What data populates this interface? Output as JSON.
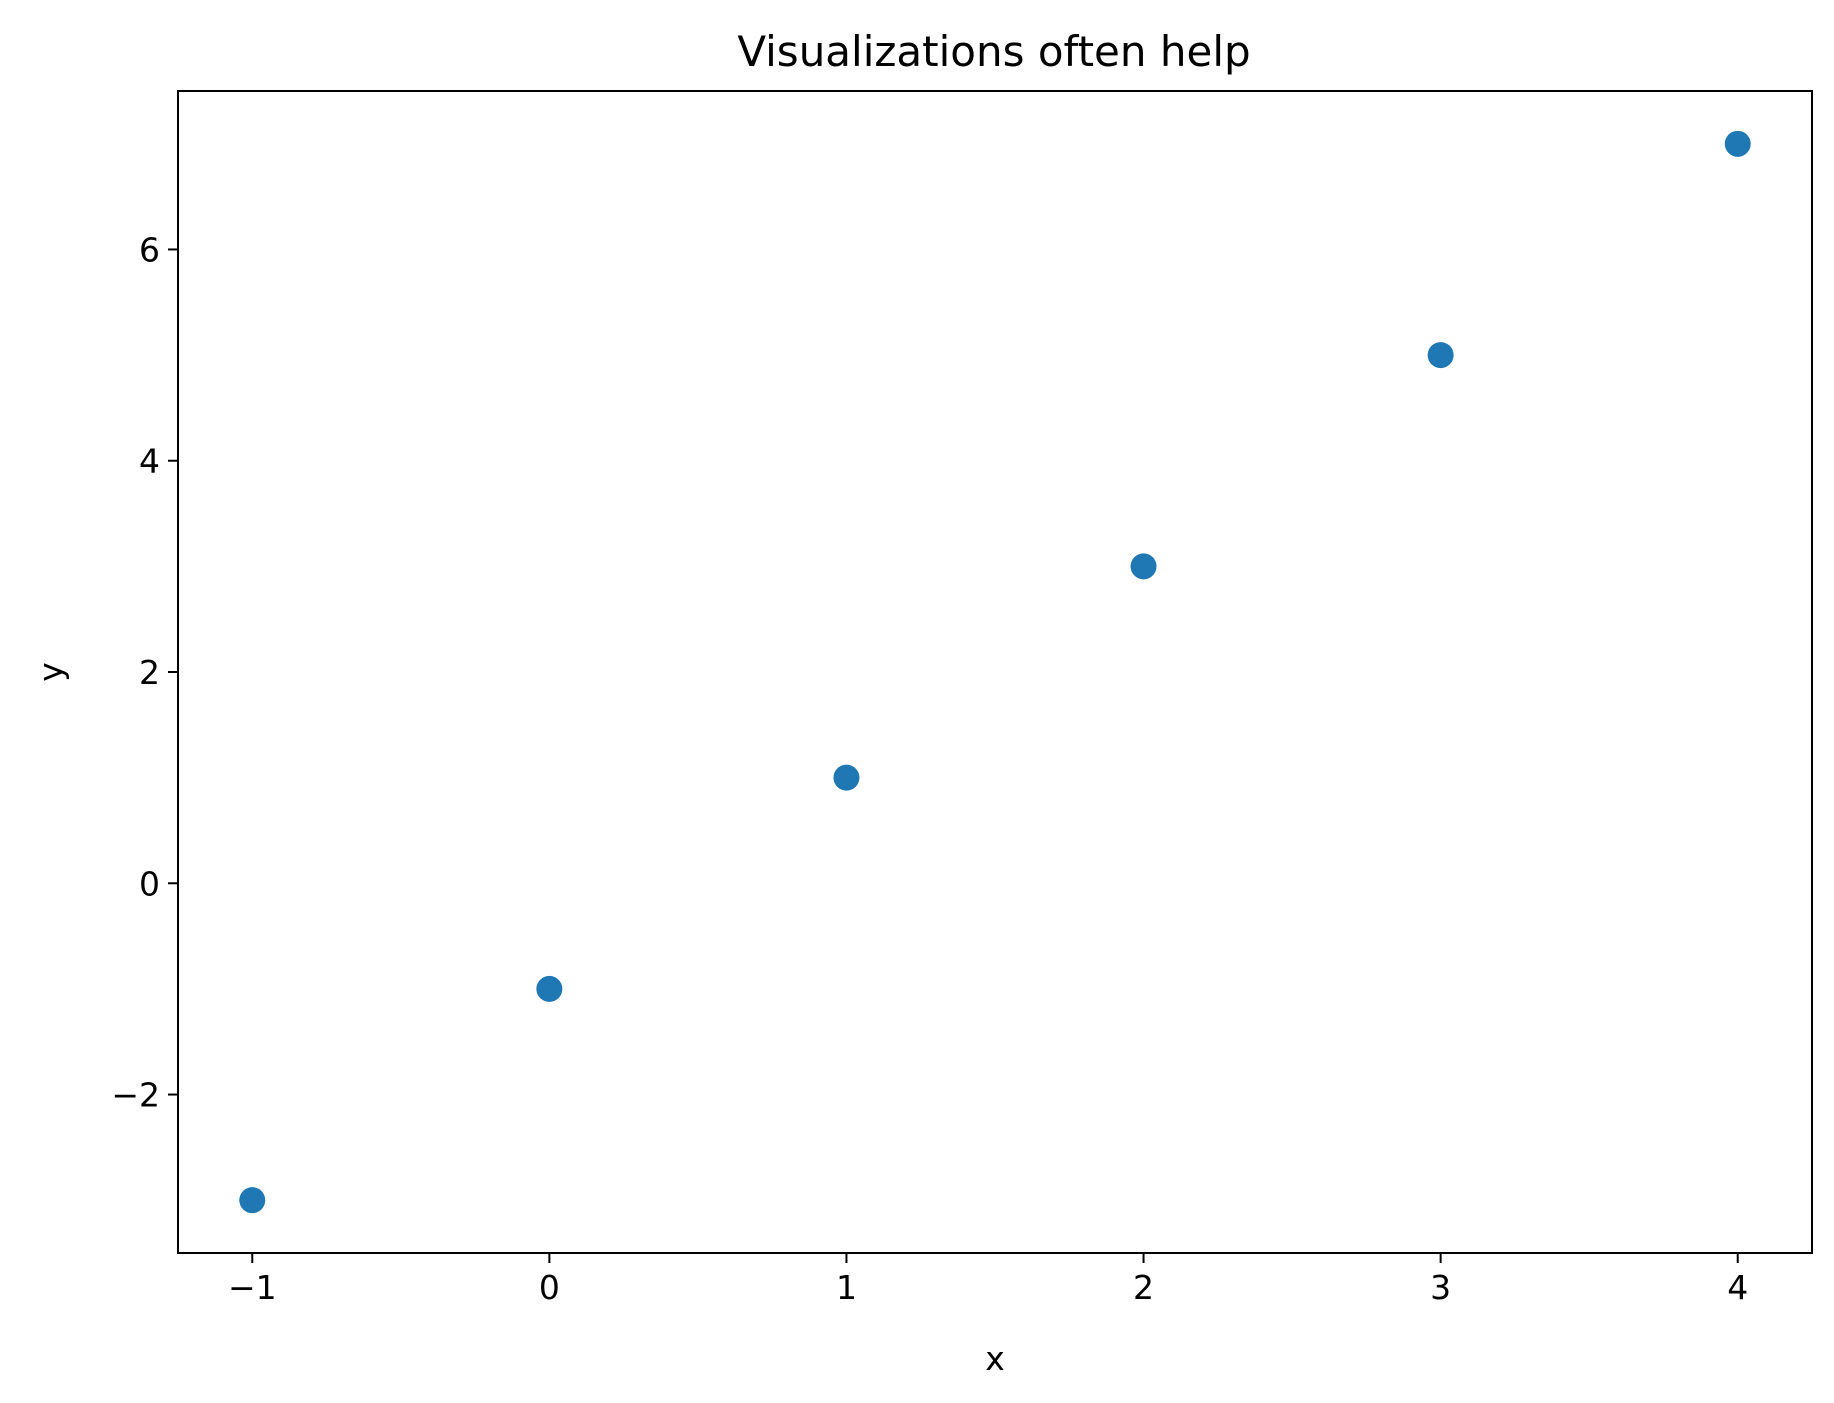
{
  "chart_data": {
    "type": "scatter",
    "title": "Visualizations often help",
    "xlabel": "x",
    "ylabel": "y",
    "x": [
      -1,
      0,
      1,
      2,
      3,
      4
    ],
    "y": [
      -3,
      -1,
      1,
      3,
      5,
      7
    ],
    "xlim": [
      -1.25,
      4.25
    ],
    "ylim": [
      -3.5,
      7.5
    ],
    "xticks": [
      -1,
      0,
      1,
      2,
      3,
      4
    ],
    "xtick_labels": [
      "−1",
      "0",
      "1",
      "2",
      "3",
      "4"
    ],
    "yticks": [
      -2,
      0,
      2,
      4,
      6
    ],
    "ytick_labels": [
      "−2",
      "0",
      "2",
      "4",
      "6"
    ],
    "grid": false,
    "marker_color": "#1f77b4"
  }
}
